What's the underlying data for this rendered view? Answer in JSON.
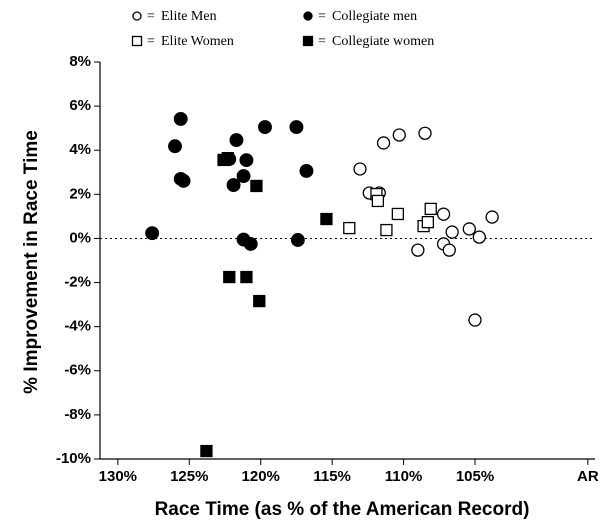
{
  "chart_data": {
    "type": "scatter",
    "x_label": "Race Time (as % of the American Record)",
    "y_label": "% Improvement in Race Time",
    "legend_separator": "=",
    "xlim": [
      131.25,
      96.6
    ],
    "xticks": [
      {
        "value": 130,
        "label": "130%"
      },
      {
        "value": 125,
        "label": "125%"
      },
      {
        "value": 120,
        "label": "120%"
      },
      {
        "value": 115,
        "label": "115%"
      },
      {
        "value": 110,
        "label": "110%"
      },
      {
        "value": 105,
        "label": "105%"
      },
      {
        "value": 97.1,
        "label": "AR"
      }
    ],
    "ylim": [
      -10,
      8
    ],
    "yticks": [
      {
        "value": -10,
        "label": "-10%"
      },
      {
        "value": -8,
        "label": "-8%"
      },
      {
        "value": -6,
        "label": "-6%"
      },
      {
        "value": -4,
        "label": "-4%"
      },
      {
        "value": -2,
        "label": "-2%"
      },
      {
        "value": 0,
        "label": "0%"
      },
      {
        "value": 2,
        "label": "2%"
      },
      {
        "value": 4,
        "label": "4%"
      },
      {
        "value": 6,
        "label": "6%"
      },
      {
        "value": 8,
        "label": "8%"
      }
    ],
    "grid": false,
    "reference_line": 0,
    "series": [
      {
        "name": "Elite Men",
        "marker": "circle-open",
        "color": "#000000",
        "x": [
          113.05,
          112.4,
          111.4,
          110.3,
          108.5,
          111.7,
          107.2,
          109.0,
          107.2,
          106.8,
          106.6,
          105.4,
          104.7,
          103.8,
          105.0
        ],
        "values": [
          3.15,
          2.06,
          4.33,
          4.69,
          4.77,
          2.06,
          1.1,
          -0.53,
          -0.25,
          -0.53,
          0.29,
          0.43,
          0.06,
          0.97,
          -3.7
        ]
      },
      {
        "name": "Elite Women",
        "marker": "square-open",
        "color": "#000000",
        "x": [
          113.8,
          111.9,
          111.8,
          111.2,
          110.4,
          108.6,
          108.3,
          108.1
        ],
        "values": [
          0.47,
          2.01,
          1.7,
          0.38,
          1.11,
          0.56,
          0.74,
          1.34
        ]
      },
      {
        "name": "Collegiate men",
        "marker": "circle",
        "color": "#000000",
        "x": [
          127.6,
          126.0,
          125.6,
          125.6,
          125.4,
          122.2,
          121.7,
          121.9,
          121.2,
          121.0,
          121.2,
          120.7,
          119.7,
          117.5,
          117.4,
          116.8
        ],
        "values": [
          0.24,
          4.18,
          5.42,
          2.7,
          2.61,
          3.6,
          4.46,
          2.42,
          2.83,
          3.55,
          -0.05,
          -0.25,
          5.05,
          5.05,
          -0.07,
          3.06
        ]
      },
      {
        "name": "Collegiate women",
        "marker": "square",
        "color": "#000000",
        "x": [
          122.6,
          122.3,
          120.3,
          122.2,
          121.0,
          120.1,
          115.4,
          123.8
        ],
        "values": [
          3.56,
          3.64,
          2.38,
          -1.75,
          -1.75,
          -2.84,
          0.88,
          -9.64
        ]
      }
    ]
  }
}
